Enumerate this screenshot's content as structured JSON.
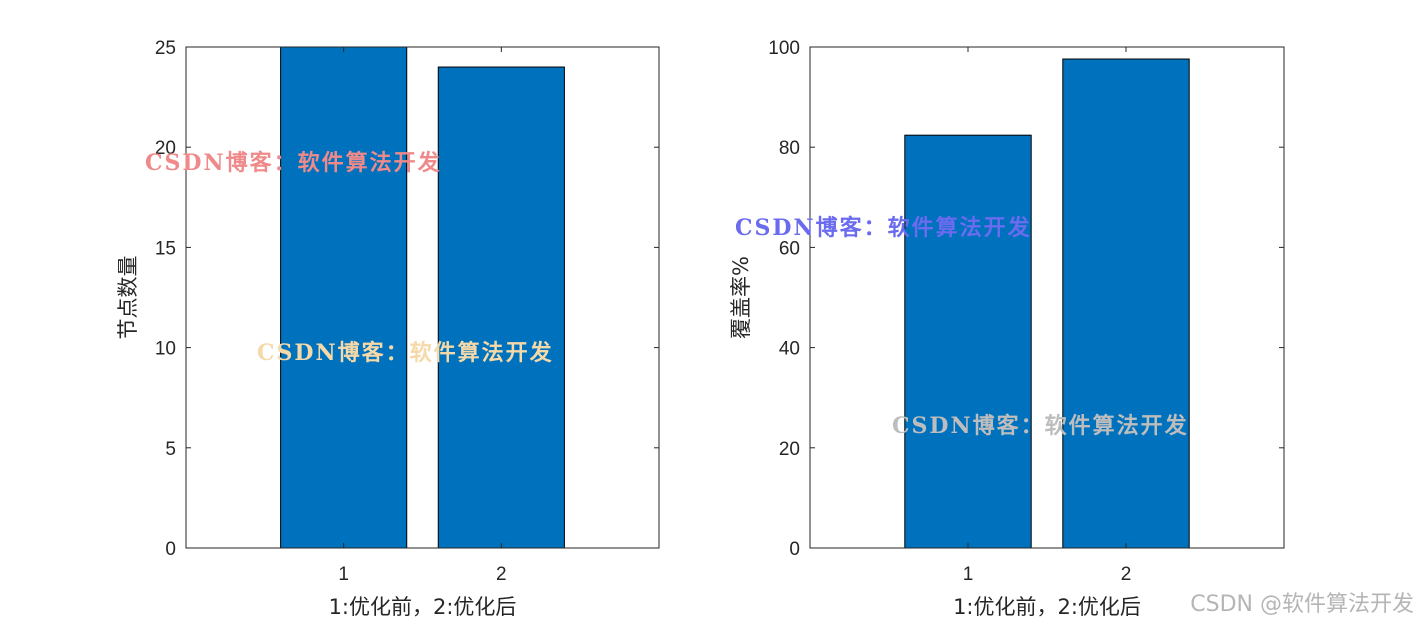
{
  "chart_data": [
    {
      "type": "bar",
      "categories": [
        "1",
        "2"
      ],
      "values": [
        25,
        24
      ],
      "xlabel": "1:优化前，2:优化后",
      "ylabel": "节点数量",
      "ylim": [
        0,
        25
      ],
      "xlim": [
        0,
        3
      ],
      "yticks": [
        "0",
        "5",
        "10",
        "15",
        "20",
        "25"
      ],
      "bar_color": "#0072BD",
      "grid": false
    },
    {
      "type": "bar",
      "categories": [
        "1",
        "2"
      ],
      "values": [
        82.4,
        97.6
      ],
      "xlabel": "1:优化前，2:优化后",
      "ylabel": "覆盖率%",
      "ylim": [
        0,
        100
      ],
      "xlim": [
        0,
        3
      ],
      "yticks": [
        "0",
        "20",
        "40",
        "60",
        "80",
        "100"
      ],
      "bar_color": "#0072BD",
      "grid": false
    }
  ],
  "watermarks": [
    {
      "text": "CSDN博客：软件算法开发",
      "color": "#f08a8a"
    },
    {
      "text": "CSDN博客：软件算法开发",
      "color": "#f5d9a8"
    },
    {
      "text": "CSDN博客：软件算法开发",
      "color": "#6b6bf0"
    },
    {
      "text": "CSDN博客：软件算法开发",
      "color": "#bdbdbd"
    }
  ],
  "credit": "CSDN @软件算法开发"
}
